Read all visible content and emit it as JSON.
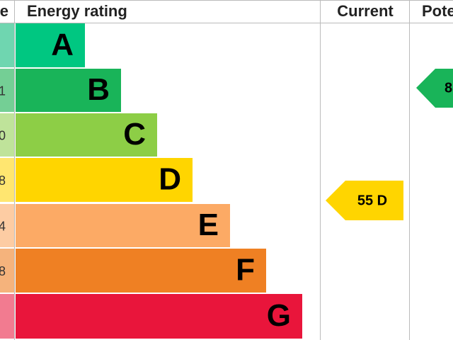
{
  "header": {
    "score": "e",
    "rating": "Energy rating",
    "current": "Current",
    "potential": "Pote"
  },
  "rows": [
    {
      "letter": "A",
      "score": ""
    },
    {
      "letter": "B",
      "score": "1"
    },
    {
      "letter": "C",
      "score": "0"
    },
    {
      "letter": "D",
      "score": "8"
    },
    {
      "letter": "E",
      "score": "4"
    },
    {
      "letter": "F",
      "score": "8"
    },
    {
      "letter": "G",
      "score": ""
    }
  ],
  "current": {
    "label": "55 D"
  },
  "potential": {
    "label": "8"
  }
}
